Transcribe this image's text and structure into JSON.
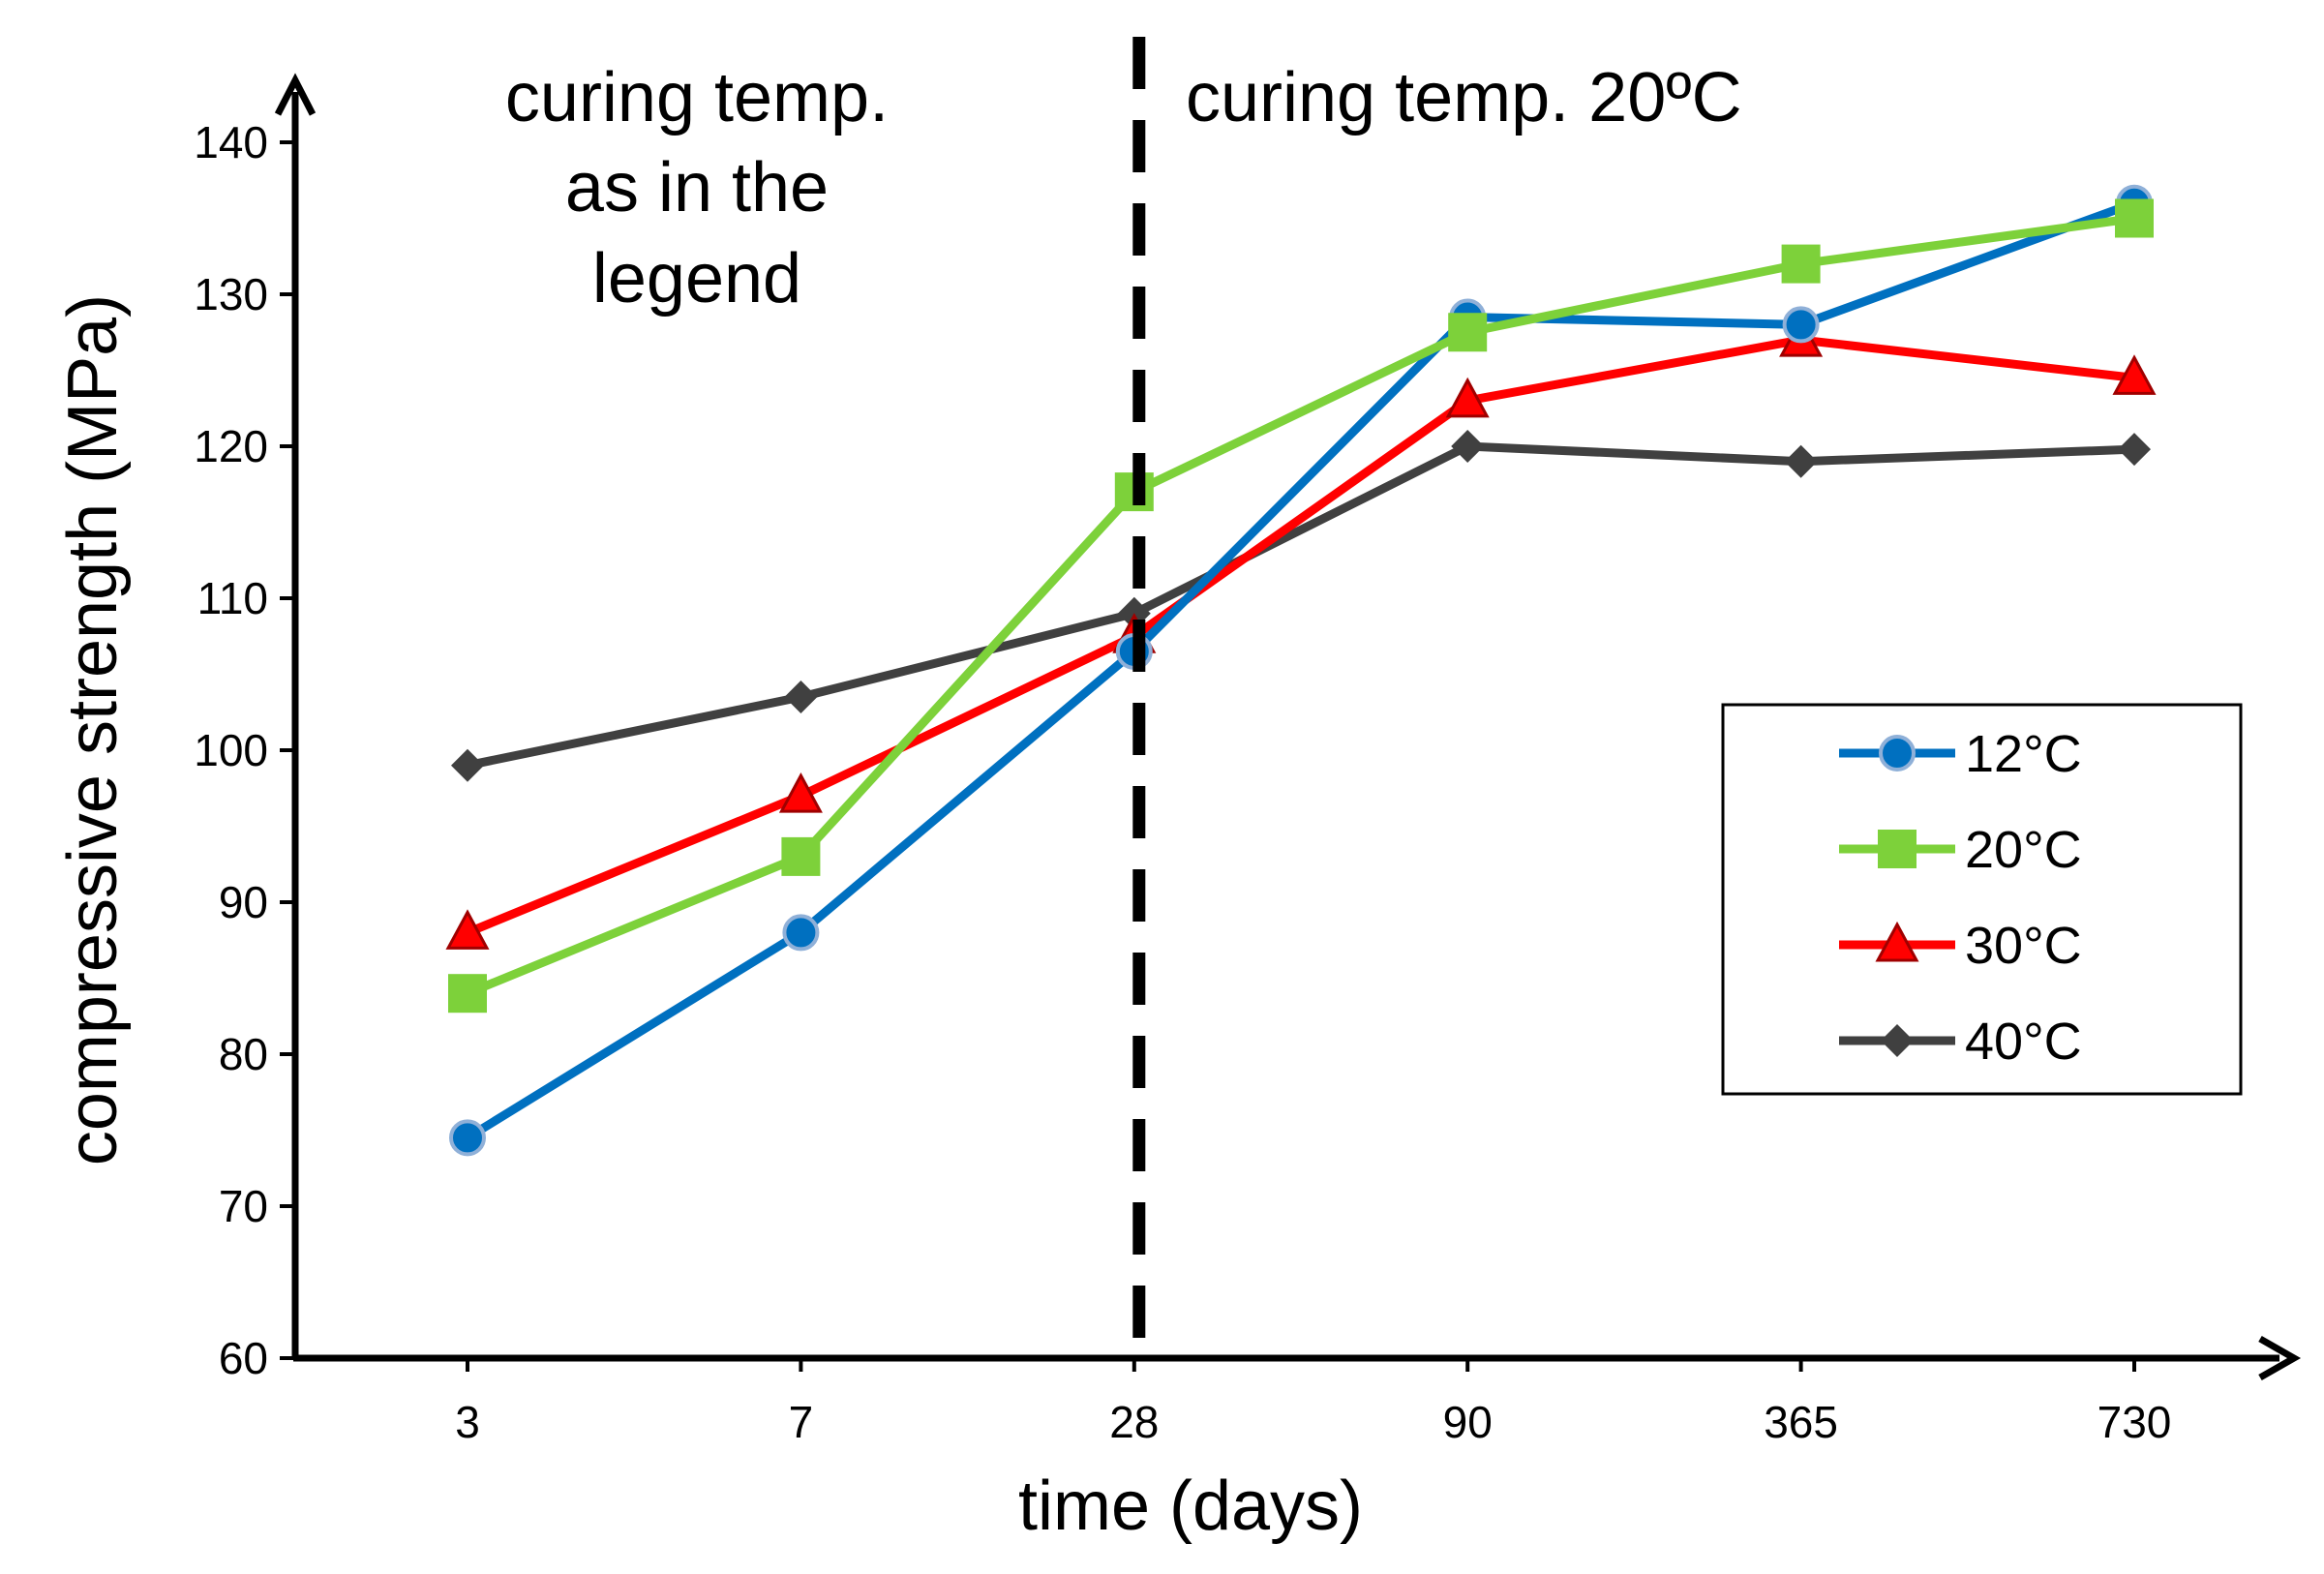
{
  "chart_data": {
    "type": "line",
    "categories": [
      "3",
      "7",
      "28",
      "90",
      "365",
      "730"
    ],
    "xlabel": "time (days)",
    "ylabel": "compressive strength (MPa)",
    "ylim": [
      60,
      140
    ],
    "yticks": [
      60,
      70,
      80,
      90,
      100,
      110,
      120,
      130,
      140
    ],
    "grid": false,
    "legend_position": "right",
    "annotations": {
      "left_lines": [
        "curing temp.",
        "as in the",
        "legend"
      ],
      "right": "curing temp. 20ºC",
      "divider_at_category": "28"
    },
    "series": [
      {
        "name": "12°C",
        "color": "#0070C0",
        "marker": "circle",
        "values": [
          74.5,
          88,
          106.5,
          128.5,
          128,
          136
        ]
      },
      {
        "name": "20°C",
        "color": "#7DD13A",
        "marker": "square",
        "values": [
          84,
          93,
          117,
          127.5,
          132,
          135
        ]
      },
      {
        "name": "30°C",
        "color": "#FF0000",
        "marker": "triangle",
        "values": [
          88,
          97,
          107.5,
          123,
          127,
          124.5
        ]
      },
      {
        "name": "40°C",
        "color": "#404040",
        "marker": "diamond",
        "values": [
          99,
          103.5,
          109,
          120,
          119,
          119.8
        ]
      }
    ]
  }
}
